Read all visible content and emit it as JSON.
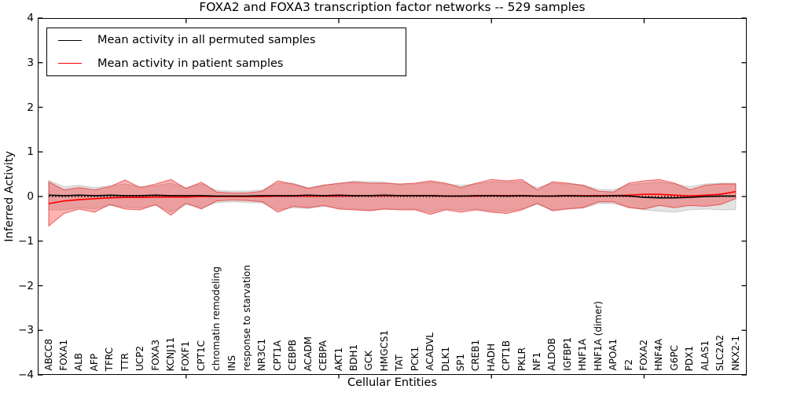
{
  "figure": {
    "background": "#ffffff"
  },
  "chart_data": {
    "type": "line",
    "title": "FOXA2 and FOXA3 transcription factor networks -- 529 samples",
    "xlabel": "Cellular Entities",
    "ylabel": "Inferred Activity",
    "ylim": [
      -4,
      4
    ],
    "yticks": [
      4,
      3,
      2,
      1,
      0,
      -1,
      -2,
      -3,
      -4
    ],
    "grid": false,
    "legend_position": "upper left",
    "x_major_tick_indices": [
      9,
      19,
      29,
      39
    ],
    "zero_line": {
      "value": 0,
      "style": "dotted",
      "color": "#000000"
    },
    "categories": [
      "ABCC8",
      "FOXA1",
      "ALB",
      "AFP",
      "TFRC",
      "TTR",
      "UCP2",
      "FOXA3",
      "KCNJ11",
      "FOXF1",
      "CPT1C",
      "chromatin remodeling",
      "INS",
      "response to starvation",
      "NR3C1",
      "CPT1A",
      "CEBPB",
      "ACADM",
      "CEBPA",
      "AKT1",
      "BDH1",
      "GCK",
      "HMGCS1",
      "TAT",
      "PCK1",
      "ACADVL",
      "DLK1",
      "SP1",
      "CREB1",
      "HADH",
      "CPT1B",
      "PKLR",
      "NF1",
      "ALDOB",
      "IGFBP1",
      "HNF1A",
      "HNF1A (dimer)",
      "APOA1",
      "F2",
      "FOXA2",
      "HNF4A",
      "G6PC",
      "PDX1",
      "ALAS1",
      "SLC2A2",
      "NKX2-1"
    ],
    "series": [
      {
        "name": "Mean activity in all permuted samples",
        "color": "#000000",
        "line_style": "solid",
        "values": [
          0.03,
          0.02,
          0.03,
          0.02,
          0.03,
          0.02,
          0.02,
          0.03,
          0.02,
          0.02,
          0.02,
          0.01,
          0.01,
          0.01,
          0.02,
          0.02,
          0.02,
          0.03,
          0.02,
          0.03,
          0.02,
          0.02,
          0.03,
          0.02,
          0.02,
          0.02,
          0.01,
          0.01,
          0.02,
          0.02,
          0.01,
          0.02,
          0.01,
          0.01,
          0.02,
          0.01,
          0.01,
          0.02,
          0.01,
          -0.02,
          -0.03,
          -0.03,
          -0.02,
          0.0,
          0.01,
          0.01
        ],
        "band": {
          "upper": [
            0.36,
            0.22,
            0.25,
            0.2,
            0.24,
            0.28,
            0.22,
            0.24,
            0.3,
            0.2,
            0.28,
            0.14,
            0.12,
            0.12,
            0.15,
            0.3,
            0.3,
            0.2,
            0.26,
            0.28,
            0.35,
            0.33,
            0.32,
            0.26,
            0.28,
            0.32,
            0.28,
            0.25,
            0.28,
            0.33,
            0.32,
            0.33,
            0.2,
            0.3,
            0.28,
            0.26,
            0.16,
            0.15,
            0.26,
            0.3,
            0.33,
            0.28,
            0.22,
            0.28,
            0.3,
            0.3
          ],
          "lower": [
            -0.3,
            -0.3,
            -0.25,
            -0.28,
            -0.2,
            -0.24,
            -0.26,
            -0.2,
            -0.35,
            -0.18,
            -0.25,
            -0.14,
            -0.12,
            -0.13,
            -0.15,
            -0.3,
            -0.25,
            -0.27,
            -0.22,
            -0.26,
            -0.28,
            -0.3,
            -0.28,
            -0.28,
            -0.28,
            -0.35,
            -0.28,
            -0.3,
            -0.28,
            -0.32,
            -0.33,
            -0.28,
            -0.18,
            -0.3,
            -0.26,
            -0.26,
            -0.16,
            -0.16,
            -0.24,
            -0.3,
            -0.33,
            -0.35,
            -0.3,
            -0.28,
            -0.3,
            -0.3
          ],
          "fill": "rgba(128,128,128,0.22)",
          "edge": "rgba(128,128,128,0.30)"
        }
      },
      {
        "name": "Mean activity in patient samples",
        "color": "#ff0000",
        "line_style": "solid",
        "values": [
          -0.16,
          -0.1,
          -0.07,
          -0.05,
          -0.03,
          -0.02,
          -0.02,
          -0.01,
          -0.01,
          -0.01,
          0.0,
          0.0,
          0.0,
          0.0,
          0.0,
          0.01,
          0.01,
          0.01,
          0.01,
          0.01,
          0.02,
          0.02,
          0.02,
          0.02,
          0.02,
          0.02,
          0.01,
          0.01,
          0.01,
          0.02,
          0.02,
          0.02,
          0.01,
          0.01,
          0.02,
          0.02,
          0.02,
          0.02,
          0.03,
          0.05,
          0.05,
          0.03,
          0.01,
          0.03,
          0.05,
          0.11
        ],
        "band": {
          "upper": [
            0.33,
            0.15,
            0.2,
            0.15,
            0.22,
            0.37,
            0.2,
            0.28,
            0.38,
            0.18,
            0.32,
            0.1,
            0.08,
            0.08,
            0.12,
            0.35,
            0.28,
            0.18,
            0.25,
            0.3,
            0.32,
            0.3,
            0.3,
            0.28,
            0.3,
            0.35,
            0.3,
            0.2,
            0.3,
            0.38,
            0.35,
            0.38,
            0.15,
            0.33,
            0.3,
            0.25,
            0.12,
            0.1,
            0.3,
            0.35,
            0.38,
            0.3,
            0.15,
            0.25,
            0.28,
            0.28
          ],
          "lower": [
            -0.66,
            -0.38,
            -0.28,
            -0.35,
            -0.18,
            -0.28,
            -0.3,
            -0.18,
            -0.42,
            -0.15,
            -0.28,
            -0.1,
            -0.08,
            -0.09,
            -0.12,
            -0.35,
            -0.22,
            -0.25,
            -0.2,
            -0.28,
            -0.3,
            -0.32,
            -0.28,
            -0.3,
            -0.3,
            -0.4,
            -0.3,
            -0.35,
            -0.3,
            -0.35,
            -0.38,
            -0.3,
            -0.15,
            -0.32,
            -0.28,
            -0.25,
            -0.12,
            -0.12,
            -0.25,
            -0.28,
            -0.2,
            -0.25,
            -0.2,
            -0.22,
            -0.18,
            -0.05
          ],
          "fill": "rgba(255,0,0,0.30)",
          "edge": "rgba(225,45,45,0.65)"
        }
      }
    ]
  }
}
